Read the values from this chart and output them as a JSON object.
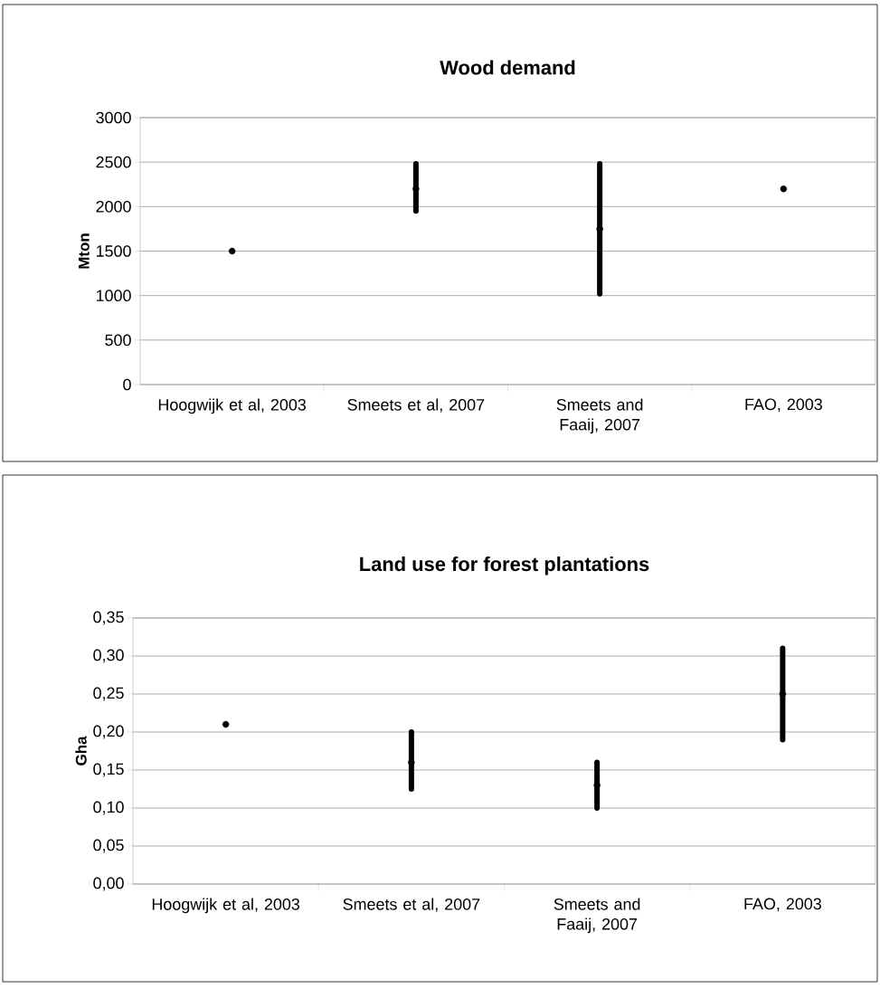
{
  "chart_data": [
    {
      "type": "scatter",
      "title": "Wood demand",
      "ylabel": "Mton",
      "categories": [
        "Hoogwijk et al, 2003",
        "Smeets et al, 2007",
        "Smeets and Faaij, 2007",
        "FAO, 2003"
      ],
      "values": [
        1500,
        2200,
        1750,
        2200
      ],
      "errors": [
        null,
        [
          1950,
          2480
        ],
        [
          1020,
          2480
        ],
        null
      ],
      "color": "#000000",
      "marker": "circle",
      "grid": "y",
      "ylim": [
        0,
        3000
      ],
      "yticks": [
        0,
        500,
        1000,
        1500,
        2000,
        2500,
        3000
      ]
    },
    {
      "type": "scatter",
      "title": "Land use for forest plantations",
      "ylabel": "Gha",
      "categories": [
        "Hoogwijk et al, 2003",
        "Smeets et al, 2007",
        "Smeets and Faaij, 2007",
        "FAO, 2003"
      ],
      "values": [
        0.21,
        0.16,
        0.13,
        0.25
      ],
      "errors": [
        null,
        [
          0.125,
          0.2
        ],
        [
          0.1,
          0.16
        ],
        [
          0.19,
          0.31
        ]
      ],
      "color": "#000000",
      "marker": "circle",
      "grid": "y",
      "ylim": [
        0,
        0.35
      ],
      "yticks": [
        {
          "value": 0,
          "label": "0,00"
        },
        {
          "value": 0.05,
          "label": "0,05"
        },
        {
          "value": 0.1,
          "label": "0,10"
        },
        {
          "value": 0.15,
          "label": "0,15"
        },
        {
          "value": 0.2,
          "label": "0,20"
        },
        {
          "value": 0.25,
          "label": "0,25"
        },
        {
          "value": 0.3,
          "label": "0,30"
        },
        {
          "value": 0.35,
          "label": "0,35"
        }
      ]
    }
  ]
}
